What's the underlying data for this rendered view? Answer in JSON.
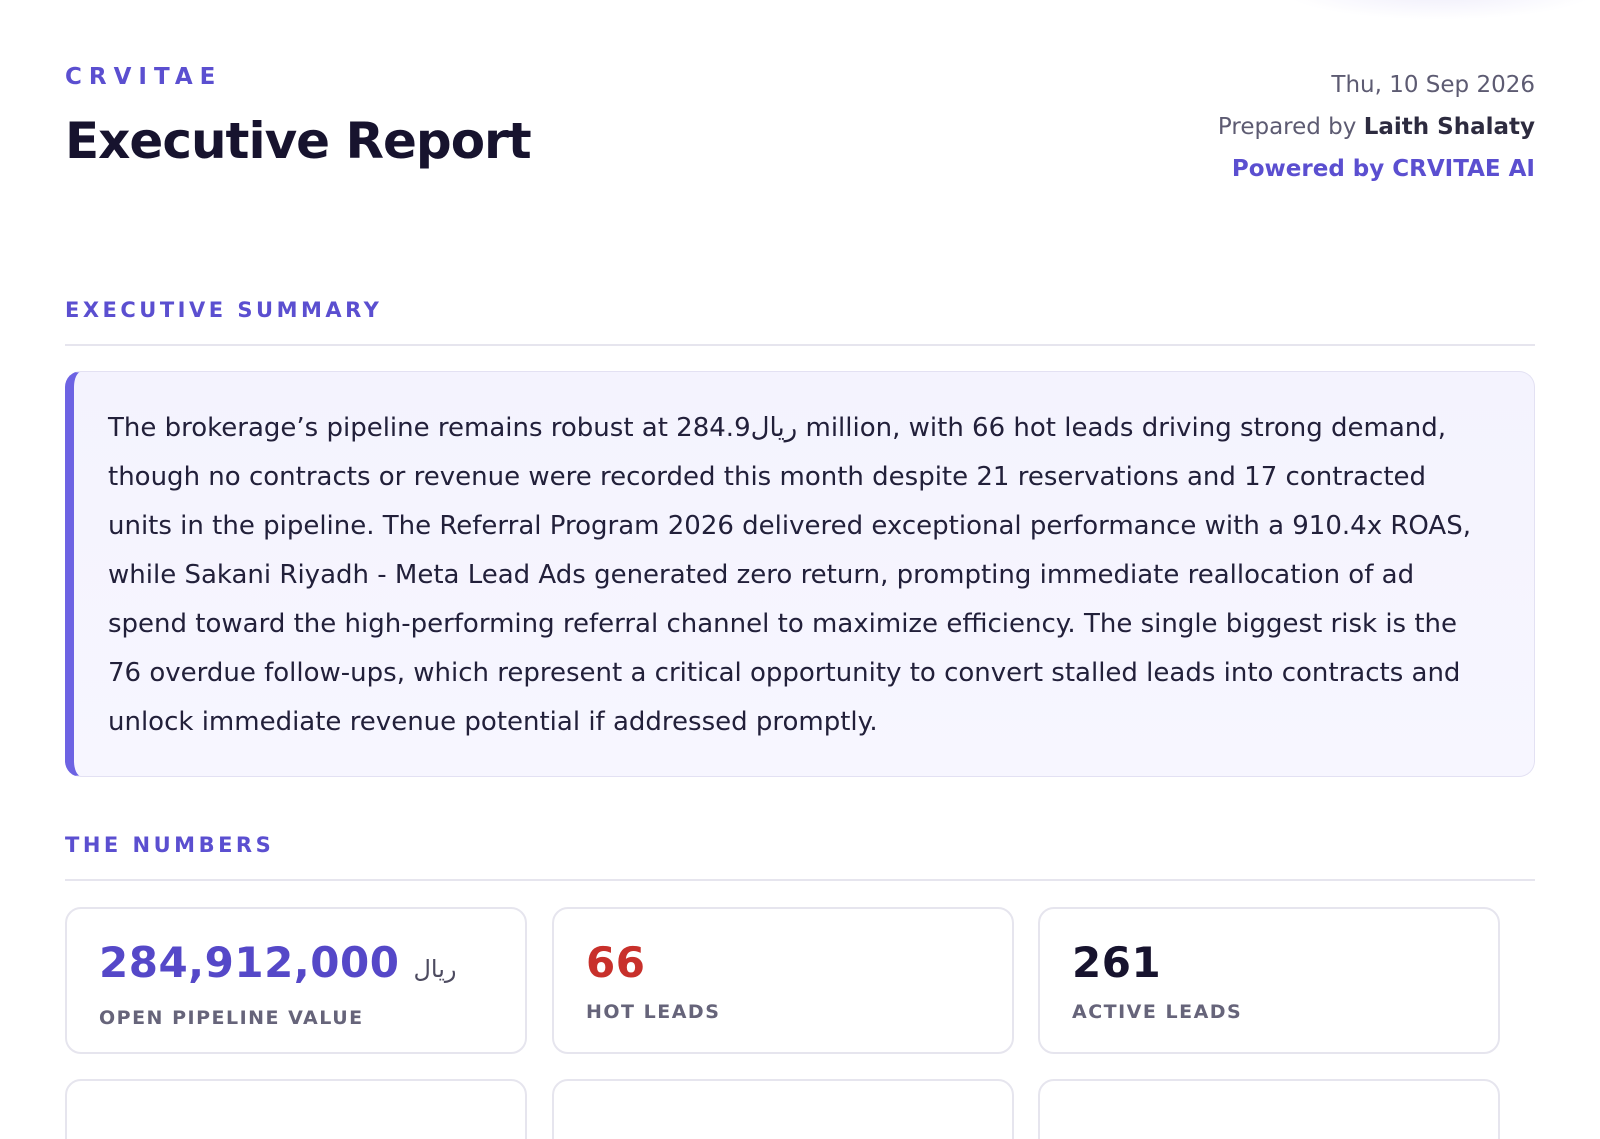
{
  "header": {
    "brand": "CRVITAE",
    "title": "Executive Report",
    "date": "Thu, 10 Sep 2026",
    "prepared_prefix": "Prepared by",
    "prepared_name": "Laith Shalaty",
    "powered": "Powered by CRVITAE AI"
  },
  "executive_summary": {
    "heading": "EXECUTIVE SUMMARY",
    "text": "The brokerage’s pipeline remains robust at 284.9ريال million, with 66 hot leads driving strong demand, though no contracts or revenue were recorded this month despite 21 reservations and 17 contracted units in the pipeline. The Referral Program 2026 delivered exceptional performance with a 910.4x ROAS, while Sakani Riyadh - Meta Lead Ads generated zero return, prompting immediate reallocation of ad spend toward the high-performing referral channel to maximize efficiency. The single biggest risk is the 76 overdue follow-ups, which represent a critical opportunity to convert stalled leads into contracts and unlock immediate revenue potential if addressed promptly."
  },
  "numbers": {
    "heading": "THE NUMBERS",
    "stats": [
      {
        "value": "284,912,000",
        "unit": "ريال",
        "label": "OPEN PIPELINE VALUE",
        "color": "#5548c8"
      },
      {
        "value": "66",
        "unit": "",
        "label": "HOT LEADS",
        "color": "#c8302b"
      },
      {
        "value": "261",
        "unit": "",
        "label": "ACTIVE LEADS",
        "color": "#17132e"
      }
    ]
  }
}
